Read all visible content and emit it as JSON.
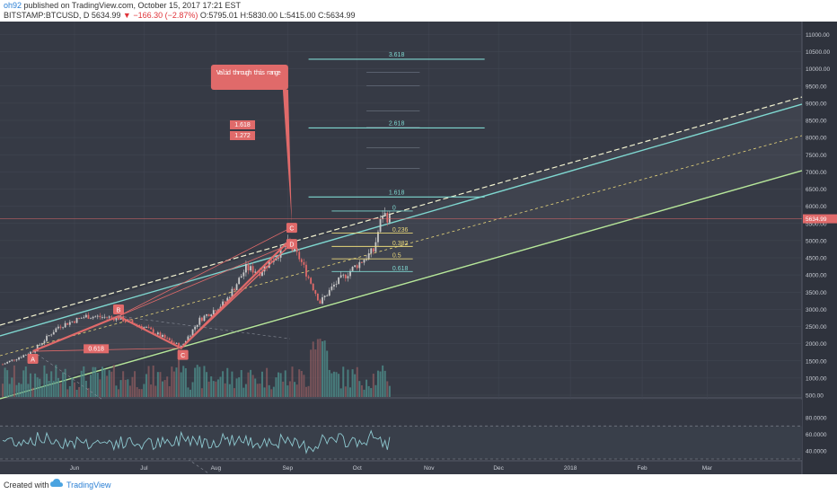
{
  "header": {
    "user": "oh92",
    "published": "published on TradingView.com, October 15, 2017 17:21 EST",
    "symbol": "BITSTAMP:BTCUSD, D",
    "last": "5634.99",
    "change": "▼ −166.30 (−2.87%)",
    "ohlc": "O:5795.01 H:5830.00 L:5415.00 C:5634.99"
  },
  "footer": {
    "created": "Created with",
    "brand": "TradingView"
  },
  "colors": {
    "background": "#363a45",
    "axis_panel": "#2f333d",
    "grid": "#434854",
    "up_candle": "#c8c8c8",
    "down_candle": "#e06a6a",
    "pattern": "#e06a6a",
    "teal_line": "#7fd7d0",
    "yellow_line": "#e8d67a",
    "green_line": "#b6e69a",
    "rsi_line": "#8ec9d0",
    "price_label": "#e06a6a"
  },
  "chart_data": {
    "type": "candlestick",
    "price_axis": {
      "ticks": [
        "11000.00",
        "10500.00",
        "10000.00",
        "9500.00",
        "9000.00",
        "8500.00",
        "8000.00",
        "7500.00",
        "7000.00",
        "6500.00",
        "6000.00",
        "5500.00",
        "5000.00",
        "4500.00",
        "4000.00",
        "3500.00",
        "3000.00",
        "2500.00",
        "2000.00",
        "1500.00",
        "1000.00",
        "500.00"
      ],
      "last_price_label": "5634.99"
    },
    "time_axis": {
      "labels": [
        "Jun",
        "Jul",
        "Aug",
        "Sep",
        "Oct",
        "Nov",
        "Dec",
        "2018",
        "Feb",
        "Mar"
      ]
    },
    "rsi_axis": {
      "ticks": [
        "80.0000",
        "60.0000",
        "40.0000"
      ]
    },
    "harmonic_pattern": {
      "points": [
        {
          "label": "A",
          "date": "2017-05-14",
          "price": 1780
        },
        {
          "label": "B",
          "date": "2017-06-20",
          "price": 2800
        },
        {
          "label": "C",
          "date": "2017-07-17",
          "price": 1870
        },
        {
          "label": "D",
          "date": "2017-09-02",
          "price": 5020
        }
      ],
      "ratios": [
        "0.618",
        "1.618",
        "1.272"
      ],
      "callout": "Valid through this range",
      "markers": [
        "C",
        "D"
      ]
    },
    "fib_extension_levels": [
      {
        "label": "3.618",
        "price": 10280
      },
      {
        "label": "2.618",
        "price": 8280
      },
      {
        "label": "1.618",
        "price": 6270
      }
    ],
    "fib_retracement_levels": [
      {
        "label": "0",
        "price": 5860
      },
      {
        "label": "0.236",
        "price": 5220
      },
      {
        "label": "0.382",
        "price": 4830
      },
      {
        "label": "0.5",
        "price": 4470
      },
      {
        "label": "0.618",
        "price": 4100
      }
    ]
  }
}
